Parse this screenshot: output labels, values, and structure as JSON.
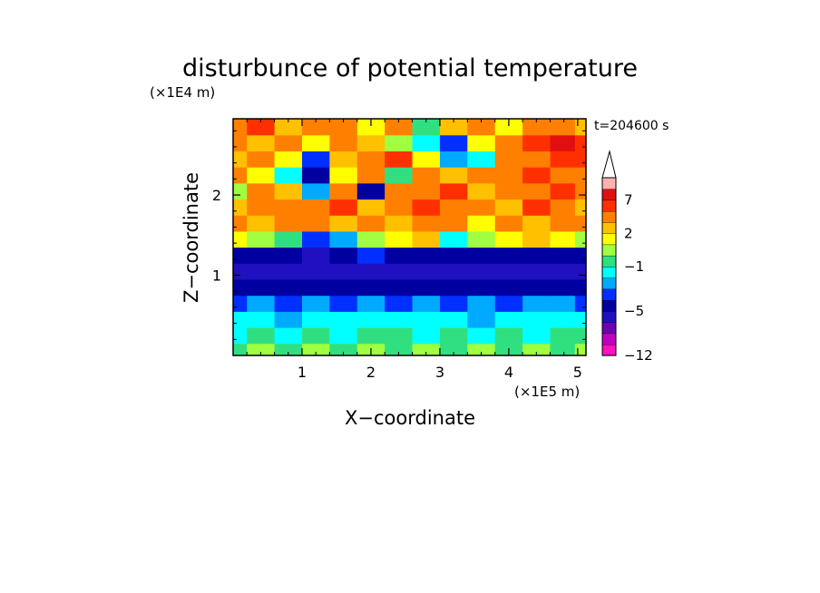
{
  "chart_data": {
    "type": "heatmap",
    "title": "disturbunce of potential temperature",
    "xlabel": "X−coordinate",
    "ylabel": "Z−coordinate",
    "x_unit": "(×1E5 m)",
    "y_unit": "(×1E4 m)",
    "time_label": "t=204600 s",
    "xlim": [
      0,
      5.12
    ],
    "ylim": [
      0,
      2.95
    ],
    "x_ticks": [
      1,
      2,
      3,
      4,
      5
    ],
    "x_tick_labels": [
      "1",
      "2",
      "3",
      "4",
      "5"
    ],
    "y_ticks": [
      1,
      2
    ],
    "y_tick_labels": [
      "1",
      "2"
    ],
    "colorbar": {
      "levels": [
        -12,
        -11,
        -9,
        -7,
        -5,
        -4,
        -3,
        -2,
        -1,
        0,
        1,
        2,
        3,
        5,
        7,
        9,
        11
      ],
      "labels": [
        {
          "value": -12,
          "text": "−12"
        },
        {
          "value": -5,
          "text": "−5"
        },
        {
          "value": -1,
          "text": "−1"
        },
        {
          "value": 2,
          "text": "2"
        },
        {
          "value": 7,
          "text": "7"
        }
      ],
      "colors": [
        "#ff10c0",
        "#c000c0",
        "#7000b0",
        "#2010c0",
        "#0000a0",
        "#0030ff",
        "#00aaff",
        "#00ffff",
        "#30e080",
        "#a0ff40",
        "#ffff00",
        "#ffc000",
        "#ff8000",
        "#ff3000",
        "#e01010",
        "#ffb0b0"
      ],
      "extend_color": "#ffffff"
    },
    "field": {
      "x": [
        0,
        0.4,
        0.8,
        1.2,
        1.6,
        2.0,
        2.4,
        2.8,
        3.2,
        3.6,
        4.0,
        4.4,
        4.8,
        5.12
      ],
      "z": [
        0.05,
        0.25,
        0.45,
        0.65,
        0.85,
        1.05,
        1.25,
        1.45,
        1.65,
        1.85,
        2.05,
        2.25,
        2.45,
        2.65,
        2.85
      ],
      "values": [
        [
          -1,
          0,
          -1,
          0,
          -1,
          0,
          -1,
          0,
          -1,
          0,
          -1,
          0,
          -1,
          0
        ],
        [
          -2,
          -1,
          -2,
          -1,
          -2,
          -1,
          -1,
          -2,
          -1,
          -2,
          -1,
          -2,
          -1,
          -1
        ],
        [
          -2,
          -2,
          -3,
          -2,
          -2,
          -2,
          -2,
          -2,
          -2,
          -3,
          -2,
          -2,
          -2,
          -2
        ],
        [
          -4,
          -3,
          -4,
          -3,
          -4,
          -3,
          -4,
          -3,
          -4,
          -3,
          -4,
          -3,
          -3,
          -4
        ],
        [
          -5,
          -5,
          -5,
          -5,
          -5,
          -5,
          -5,
          -5,
          -5,
          -5,
          -5,
          -5,
          -5,
          -5
        ],
        [
          -6,
          -6,
          -6,
          -6,
          -6,
          -6,
          -6,
          -6,
          -6,
          -6,
          -6,
          -6,
          -6,
          -6
        ],
        [
          -5,
          -5,
          -5,
          -6,
          -5,
          -4,
          -5,
          -5,
          -5,
          -5,
          -5,
          -5,
          -5,
          -5
        ],
        [
          1,
          0,
          -1,
          -4,
          -3,
          0,
          1,
          2,
          -2,
          0,
          1,
          2,
          1,
          0
        ],
        [
          3,
          2,
          3,
          4,
          2,
          3,
          2,
          4,
          3,
          1,
          3,
          2,
          4,
          3
        ],
        [
          2,
          3,
          4,
          3,
          6,
          2,
          4,
          5,
          3,
          4,
          2,
          5,
          3,
          2
        ],
        [
          0,
          4,
          2,
          -3,
          3,
          -5,
          4,
          3,
          5,
          2,
          4,
          3,
          5,
          4
        ],
        [
          3,
          1,
          -2,
          -5,
          1,
          4,
          -1,
          3,
          2,
          4,
          3,
          5,
          4,
          3
        ],
        [
          2,
          4,
          1,
          -4,
          2,
          3,
          5,
          1,
          -3,
          -2,
          3,
          4,
          6,
          5
        ],
        [
          4,
          2,
          3,
          1,
          4,
          2,
          0,
          -2,
          -4,
          1,
          3,
          5,
          7,
          6
        ],
        [
          3,
          5,
          2,
          4,
          3,
          1,
          4,
          -1,
          2,
          3,
          1,
          4,
          3,
          2
        ]
      ]
    }
  }
}
